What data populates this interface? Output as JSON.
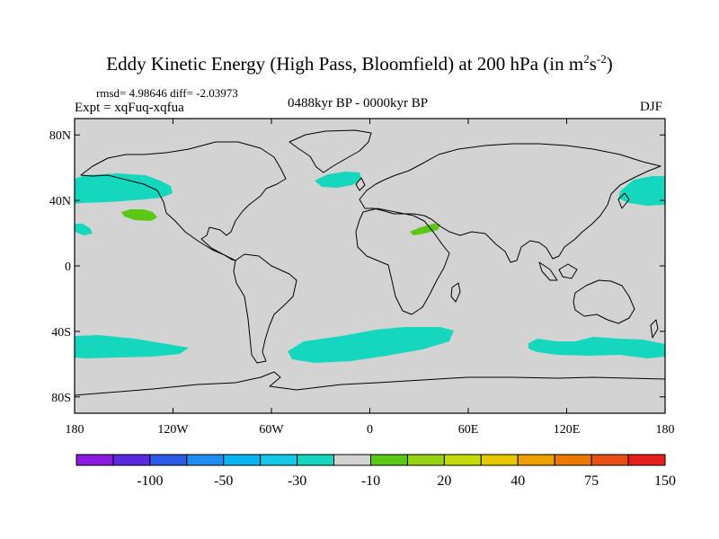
{
  "figure": {
    "title": "Eddy Kinetic Energy (High Pass, Bloomfield) at 200 hPa (in m",
    "title_unit_exp1": "2",
    "title_unit_mid": "s",
    "title_unit_exp2": "-2",
    "title_tail": ")",
    "stats": "rmsd= 4.98646 diff= -2.03973",
    "experiment": "Expt = xqFuq-xqfua",
    "period": "0488kyr BP - 0000kyr BP",
    "season": "DJF"
  },
  "map": {
    "background_color": "#d3d3d3",
    "lat_labels": [
      "80N",
      "40N",
      "0",
      "40S",
      "80S"
    ],
    "lat_values": [
      80,
      40,
      0,
      -40,
      -80
    ],
    "lon_labels": [
      "180",
      "120W",
      "60W",
      "0",
      "60E",
      "120E",
      "180"
    ],
    "lon_values": [
      -180,
      -120,
      -60,
      0,
      60,
      120,
      180
    ]
  },
  "colorbar": {
    "colors": [
      "#8c1ae0",
      "#5a28e0",
      "#2d5ae6",
      "#1e8cf0",
      "#0ab4f0",
      "#14c8e6",
      "#14d7be",
      "#d3d3d3",
      "#5ac814",
      "#96d214",
      "#c3dc0a",
      "#e6c800",
      "#eba000",
      "#eb7800",
      "#e65014",
      "#e61e1e"
    ],
    "labels": [
      "-100",
      "-50",
      "-30",
      "-10",
      "20",
      "40",
      "75",
      "150"
    ]
  }
}
